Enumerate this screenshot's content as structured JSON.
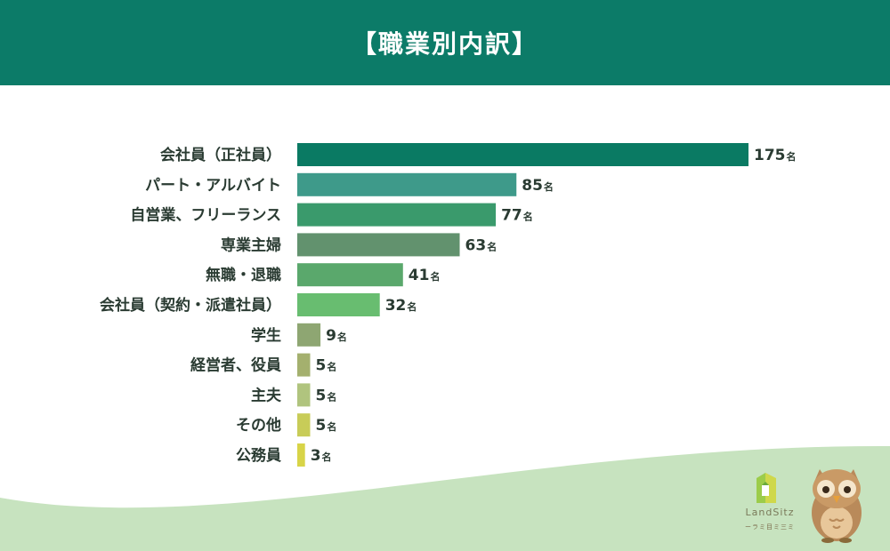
{
  "header": {
    "title": "【職業別内訳】"
  },
  "chart_data": {
    "type": "bar",
    "orientation": "horizontal",
    "title": "【職業別内訳】",
    "unit": "名",
    "categories": [
      "会社員（正社員）",
      "パート・アルバイト",
      "自営業、フリーランス",
      "専業主婦",
      "無職・退職",
      "会社員（契約・派遣社員）",
      "学生",
      "経営者、役員",
      "主夫",
      "その他",
      "公務員"
    ],
    "values": [
      175,
      85,
      77,
      63,
      41,
      32,
      9,
      5,
      5,
      5,
      3
    ],
    "colors": [
      "#0a7a63",
      "#3e9a8a",
      "#3a9a6c",
      "#62926e",
      "#5aa86c",
      "#68bd70",
      "#8ea672",
      "#a4b06e",
      "#b0c47e",
      "#c8cc58",
      "#d8d448"
    ],
    "grid": false,
    "legend": "none"
  },
  "logo": {
    "text": "LandSitz",
    "subtext": "ーラミ目ミ三ミ"
  },
  "colors": {
    "header": "#0c7b68",
    "wave": "#c7e3bf"
  }
}
